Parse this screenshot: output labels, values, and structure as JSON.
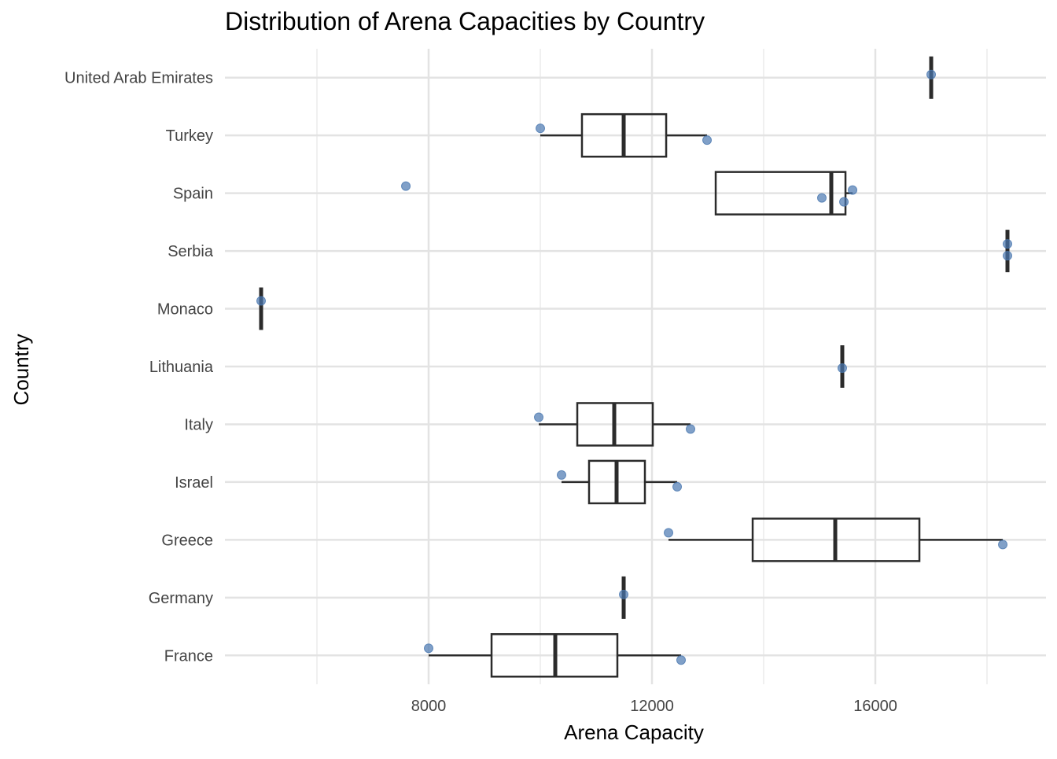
{
  "chart_data": {
    "type": "boxplot",
    "title": "Distribution of Arena Capacities by Country",
    "x_label": "Arena Capacity",
    "y_label": "Country",
    "categories": [
      "France",
      "Germany",
      "Greece",
      "Israel",
      "Italy",
      "Lithuania",
      "Monaco",
      "Serbia",
      "Spain",
      "Turkey",
      "United Arab Emirates"
    ],
    "boxes": [
      {
        "min": 8000,
        "q1": 9127,
        "median": 10268,
        "q3": 11380,
        "max": 12521,
        "points": [
          8000,
          12521
        ]
      },
      {
        "min": 11493,
        "q1": 11493,
        "median": 11493,
        "q3": 11493,
        "max": 11493,
        "points": [
          11493
        ]
      },
      {
        "min": 12296,
        "q1": 13803,
        "median": 15282,
        "q3": 16789,
        "max": 18282,
        "points": [
          12296,
          18282
        ]
      },
      {
        "min": 10380,
        "q1": 10873,
        "median": 11366,
        "q3": 11873,
        "max": 12451,
        "points": [
          10380,
          12451
        ]
      },
      {
        "min": 9972,
        "q1": 10662,
        "median": 11324,
        "q3": 12014,
        "max": 12690,
        "points": [
          9972,
          12690
        ]
      },
      {
        "min": 15408,
        "q1": 15408,
        "median": 15408,
        "q3": 15408,
        "max": 15408,
        "points": [
          15408
        ]
      },
      {
        "min": 5000,
        "q1": 5000,
        "median": 5000,
        "q3": 5000,
        "max": 5000,
        "points": [
          5000
        ]
      },
      {
        "min": 18366,
        "q1": 18366,
        "median": 18366,
        "q3": 18366,
        "max": 18366,
        "points": [
          18366,
          18366
        ]
      },
      {
        "min": 13141,
        "q1": 13141,
        "median": 15211,
        "q3": 15465,
        "max": 15592,
        "points": [
          7592,
          15042,
          15437,
          15592
        ]
      },
      {
        "min": 10000,
        "q1": 10746,
        "median": 11493,
        "q3": 12254,
        "max": 12986,
        "points": [
          10000,
          12986
        ]
      },
      {
        "min": 17000,
        "q1": 17000,
        "median": 17000,
        "q3": 17000,
        "max": 17000,
        "points": [
          17000
        ]
      }
    ],
    "box_color": "#2b2b2b",
    "point_color": "#4a78b0",
    "xlim": [
      4352,
      19056
    ],
    "xticks": [
      8000,
      12000,
      16000
    ],
    "xminorticks": [
      6000,
      10000,
      14000,
      18000
    ],
    "grid": true
  }
}
